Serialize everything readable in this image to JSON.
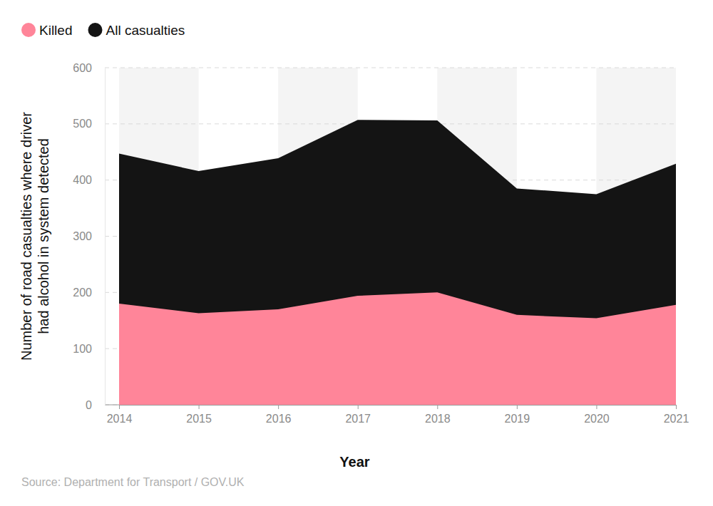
{
  "chart_data": {
    "type": "area",
    "stacked": false,
    "grid": true,
    "legend": "top-left",
    "x_label": "Year",
    "y_label": [
      "Number of road casualties where driver",
      "had alcohol in system detected"
    ],
    "source": "Source: Department for Transport / GOV.UK",
    "x": [
      2014,
      2015,
      2016,
      2017,
      2018,
      2019,
      2020,
      2021
    ],
    "xlim": [
      2014,
      2021
    ],
    "xticks": [
      2014,
      2015,
      2016,
      2017,
      2018,
      2019,
      2020,
      2021
    ],
    "ylim": [
      0,
      600
    ],
    "yticks": [
      0,
      100,
      200,
      300,
      400,
      500,
      600
    ],
    "series": [
      {
        "name": "Killed",
        "color": "#ff8599",
        "values": [
          180,
          163,
          170,
          194,
          200,
          160,
          154,
          178
        ]
      },
      {
        "name": "All casualties",
        "color": "#141414",
        "values": [
          447,
          416,
          439,
          507,
          506,
          385,
          375,
          429
        ]
      }
    ]
  }
}
